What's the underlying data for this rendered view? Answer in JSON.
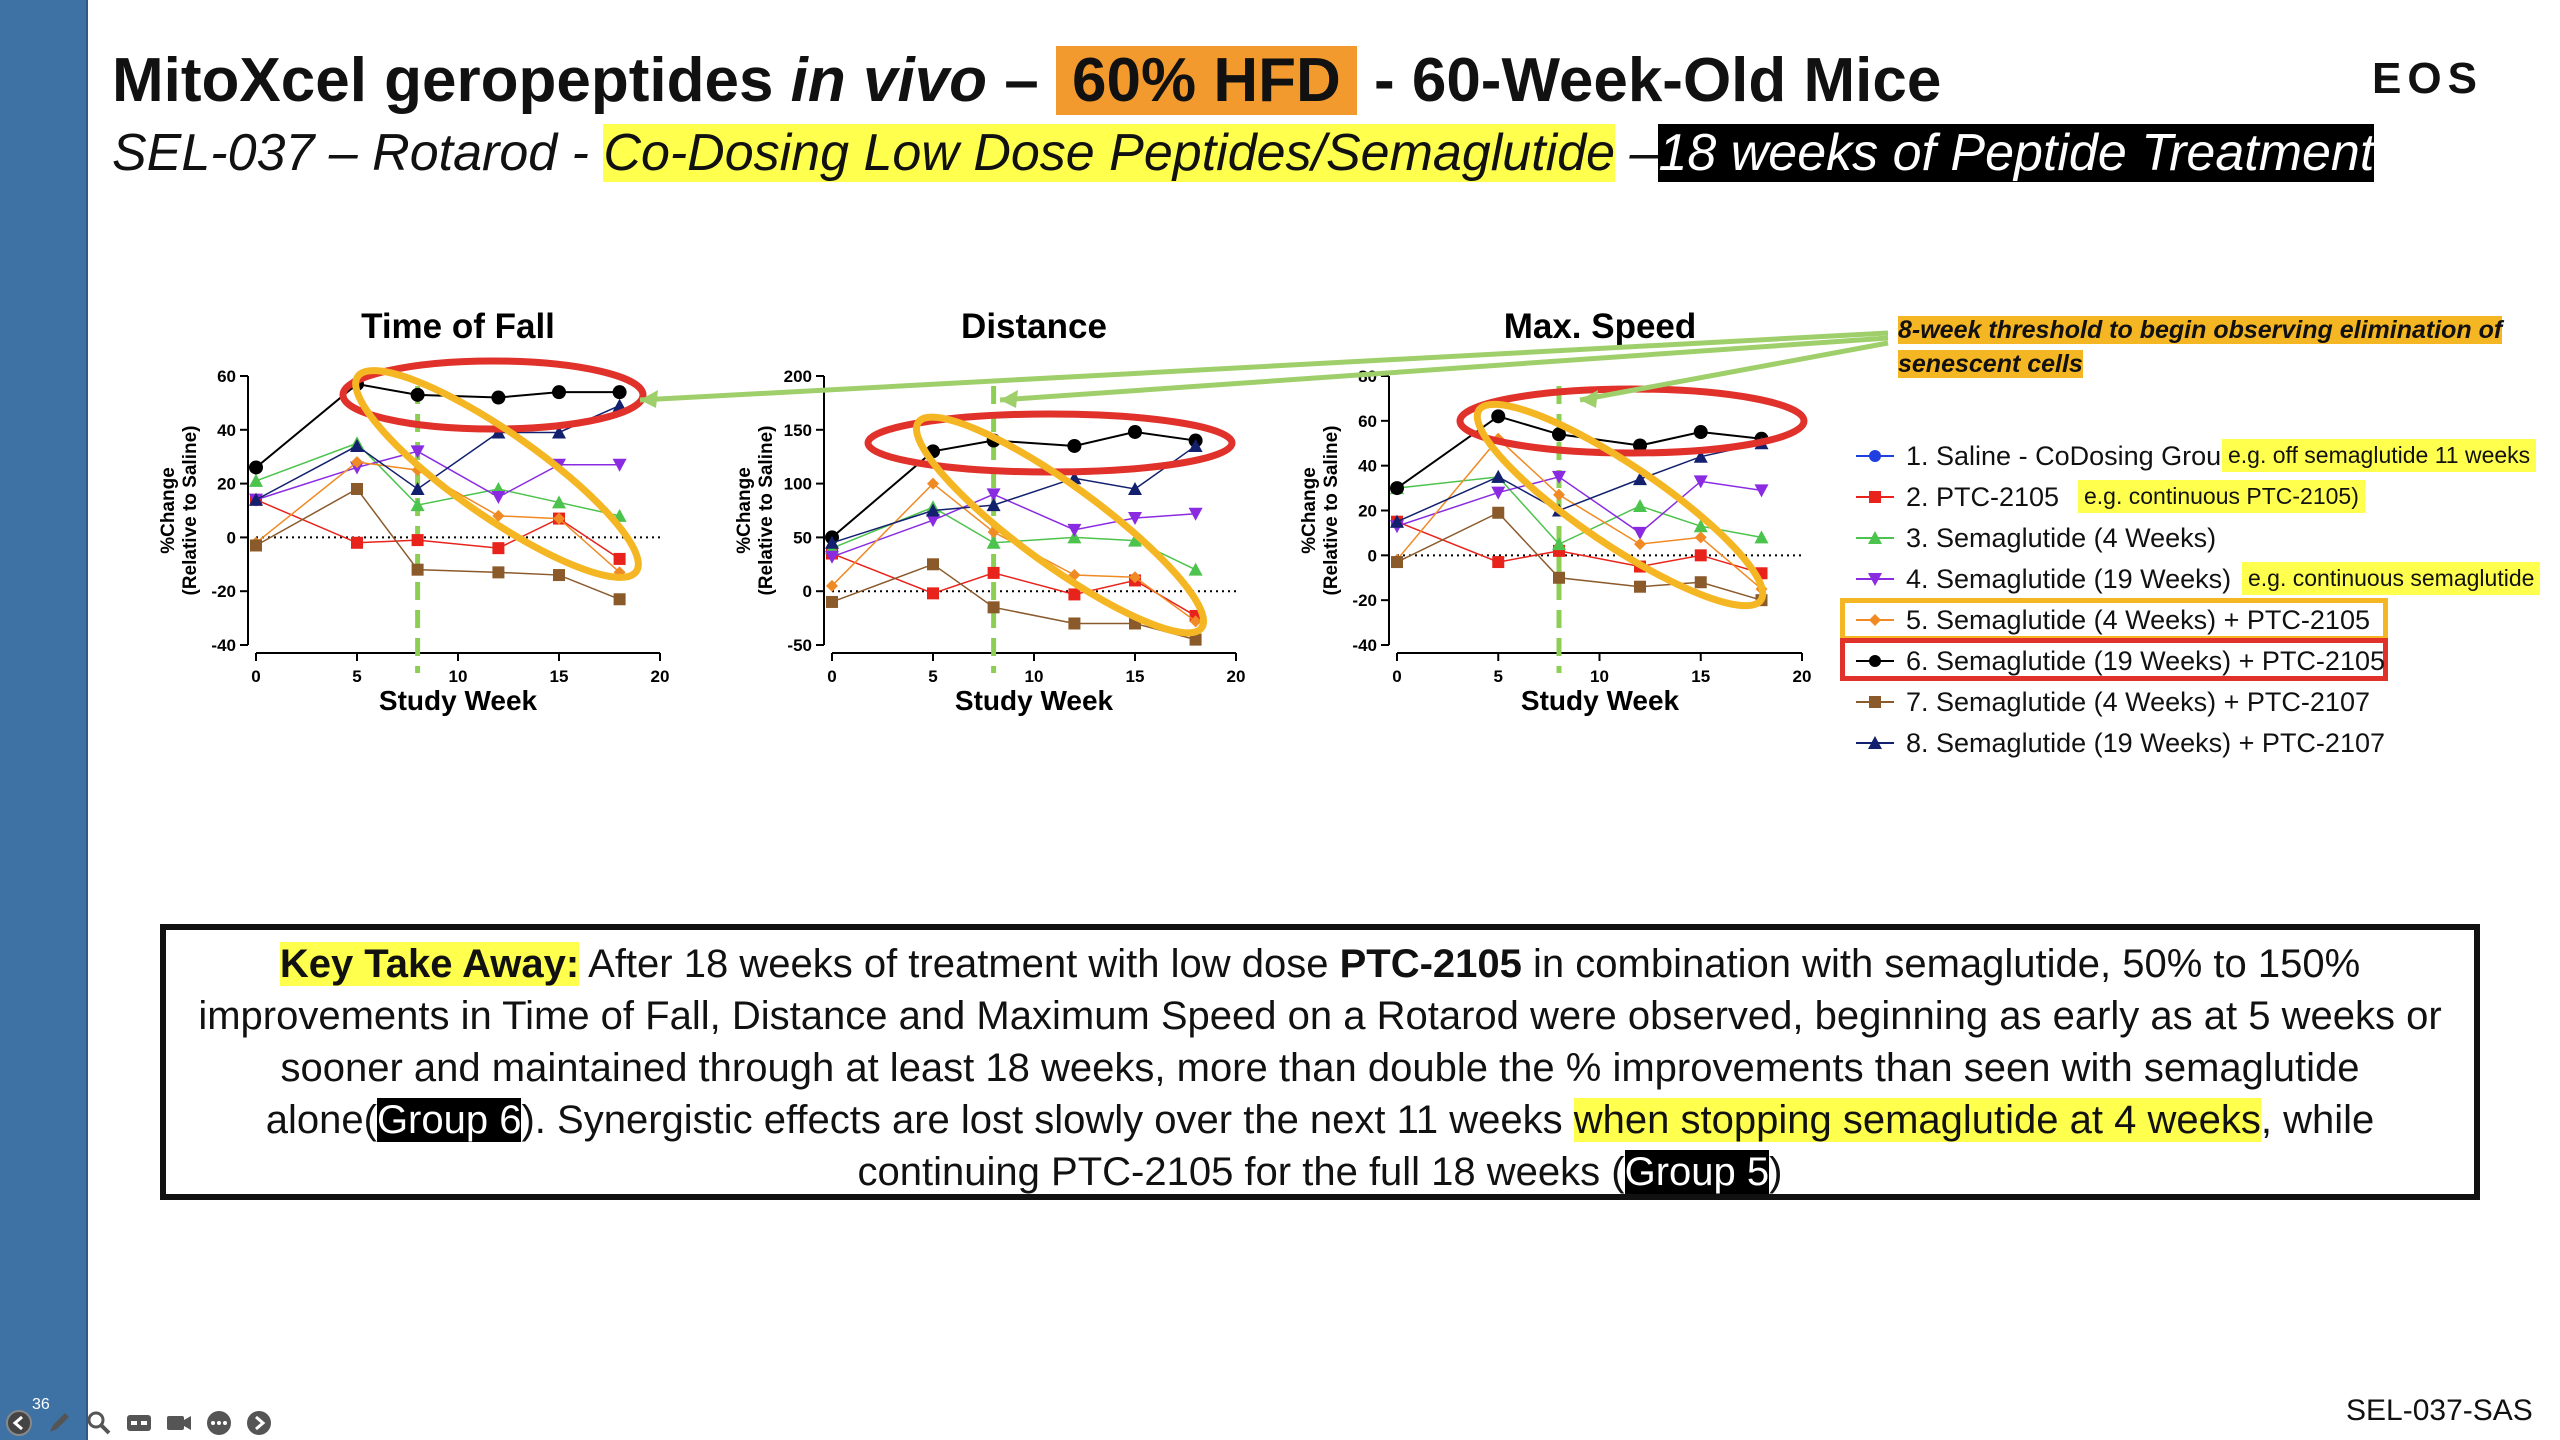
{
  "title": {
    "pre": "MitoXcel geropeptides ",
    "italic": "in vivo",
    "dash": " – ",
    "highlight": "60% HFD",
    "post": " - 60-Week-Old Mice"
  },
  "subtitle": {
    "pre": "SEL-037 – Rotarod - ",
    "highlight": "Co-Dosing Low Dose Peptides/Semaglutide",
    "dash": " –",
    "black": "18 weeks of Peptide Treatment"
  },
  "logo": "EOS",
  "annotation": "8-week threshold to begin observing elimination of senescent cells",
  "colors": {
    "sidebar": "#3f72a4",
    "orange_highlight": "#f39a2e",
    "yellow_highlight": "#ffff4d",
    "red_circle": "#e0312b",
    "orange_circle": "#f5b623",
    "green_arrow": "#9fcf6a"
  },
  "chart_data": [
    {
      "type": "line",
      "title": "Time of Fall",
      "xlabel": "Study Week",
      "ylabel": "%Change (Relative to Saline)",
      "xlim": [
        0,
        20
      ],
      "ylim": [
        -40,
        60
      ],
      "xticks": [
        0,
        5,
        10,
        15,
        20
      ],
      "yticks": [
        -40,
        -20,
        0,
        20,
        40,
        60
      ],
      "x": [
        0,
        5,
        8,
        12,
        15,
        18
      ],
      "series": [
        {
          "name": "1. Saline - CoDosing Group",
          "values": [
            0,
            0,
            0,
            0,
            0,
            0
          ]
        },
        {
          "name": "2. PTC-2105",
          "values": [
            14,
            -2,
            -1,
            -4,
            7,
            -8
          ]
        },
        {
          "name": "3. Semaglutide (4 Weeks)",
          "values": [
            21,
            35,
            12,
            18,
            13,
            8
          ]
        },
        {
          "name": "4. Semaglutide (19 Weeks)",
          "values": [
            14,
            26,
            32,
            15,
            27,
            27
          ]
        },
        {
          "name": "5. Semaglutide (4 Weeks) + PTC-2105",
          "values": [
            -2,
            28,
            25,
            8,
            7,
            -13
          ]
        },
        {
          "name": "6. Semaglutide (19 Weeks) + PTC-2105",
          "values": [
            26,
            57,
            53,
            52,
            54,
            54
          ]
        },
        {
          "name": "7. Semaglutide (4 Weeks) + PTC-2107",
          "values": [
            -3,
            18,
            -12,
            -13,
            -14,
            -23
          ]
        },
        {
          "name": "8. Semaglutide (19 Weeks) + PTC-2107",
          "values": [
            14,
            34,
            18,
            39,
            39,
            49
          ]
        }
      ]
    },
    {
      "type": "line",
      "title": "Distance",
      "xlabel": "Study Week",
      "ylabel": "%Change (Relative to Saline)",
      "xlim": [
        0,
        20
      ],
      "ylim": [
        -50,
        200
      ],
      "xticks": [
        0,
        5,
        10,
        15,
        20
      ],
      "yticks": [
        -50,
        0,
        50,
        100,
        150,
        200
      ],
      "x": [
        0,
        5,
        8,
        12,
        15,
        18
      ],
      "series": [
        {
          "name": "1. Saline - CoDosing Group",
          "values": [
            0,
            0,
            0,
            0,
            0,
            0
          ]
        },
        {
          "name": "2. PTC-2105",
          "values": [
            35,
            -2,
            17,
            -3,
            10,
            -23
          ]
        },
        {
          "name": "3. Semaglutide (4 Weeks)",
          "values": [
            40,
            78,
            45,
            50,
            47,
            20
          ]
        },
        {
          "name": "4. Semaglutide (19 Weeks)",
          "values": [
            32,
            66,
            90,
            57,
            68,
            72
          ]
        },
        {
          "name": "5. Semaglutide (4 Weeks) + PTC-2105",
          "values": [
            5,
            100,
            55,
            15,
            13,
            -28
          ]
        },
        {
          "name": "6. Semaglutide (19 Weeks) + PTC-2105",
          "values": [
            50,
            130,
            140,
            135,
            148,
            140
          ]
        },
        {
          "name": "7. Semaglutide (4 Weeks) + PTC-2107",
          "values": [
            -10,
            25,
            -15,
            -30,
            -30,
            -45
          ]
        },
        {
          "name": "8. Semaglutide (19 Weeks) + PTC-2107",
          "values": [
            45,
            75,
            80,
            105,
            95,
            135
          ]
        }
      ]
    },
    {
      "type": "line",
      "title": "Max. Speed",
      "xlabel": "Study Week",
      "ylabel": "%Change (Relative to Saline)",
      "xlim": [
        0,
        20
      ],
      "ylim": [
        -40,
        80
      ],
      "xticks": [
        0,
        5,
        10,
        15,
        20
      ],
      "yticks": [
        -40,
        -20,
        0,
        20,
        40,
        60,
        80
      ],
      "x": [
        0,
        5,
        8,
        12,
        15,
        18
      ],
      "series": [
        {
          "name": "1. Saline - CoDosing Group",
          "values": [
            0,
            0,
            0,
            0,
            0,
            0
          ]
        },
        {
          "name": "2. PTC-2105",
          "values": [
            15,
            -3,
            2,
            -5,
            0,
            -8
          ]
        },
        {
          "name": "3. Semaglutide (4 Weeks)",
          "values": [
            30,
            35,
            5,
            22,
            13,
            8
          ]
        },
        {
          "name": "4. Semaglutide (19 Weeks)",
          "values": [
            13,
            28,
            35,
            10,
            33,
            29
          ]
        },
        {
          "name": "5. Semaglutide (4 Weeks) + PTC-2105",
          "values": [
            -2,
            52,
            27,
            5,
            8,
            -15
          ]
        },
        {
          "name": "6. Semaglutide (19 Weeks) + PTC-2105",
          "values": [
            30,
            62,
            54,
            49,
            55,
            52
          ]
        },
        {
          "name": "7. Semaglutide (4 Weeks) + PTC-2107",
          "values": [
            -3,
            19,
            -10,
            -14,
            -12,
            -20
          ]
        },
        {
          "name": "8. Semaglutide (19 Weeks) + PTC-2107",
          "values": [
            15,
            35,
            20,
            34,
            44,
            50
          ]
        }
      ]
    }
  ],
  "series_styles": [
    {
      "color": "#1f3fe0",
      "marker": "circle"
    },
    {
      "color": "#e8231b",
      "marker": "square"
    },
    {
      "color": "#4cc34c",
      "marker": "triangle-up"
    },
    {
      "color": "#8a2be2",
      "marker": "triangle-down"
    },
    {
      "color": "#f08a24",
      "marker": "diamond"
    },
    {
      "color": "#000000",
      "marker": "circle"
    },
    {
      "color": "#8b5a2b",
      "marker": "square"
    },
    {
      "color": "#12206e",
      "marker": "triangle-up"
    }
  ],
  "legend": {
    "items": [
      "1. Saline - CoDosing Group",
      "2. PTC-2105",
      "3. Semaglutide (4 Weeks)",
      "4. Semaglutide (19 Weeks)",
      "5. Semaglutide (4 Weeks) + PTC-2105",
      "6. Semaglutide (19 Weeks) + PTC-2105",
      "7. Semaglutide (4 Weeks) + PTC-2107",
      "8. Semaglutide (19 Weeks) + PTC-2107"
    ],
    "notes": {
      "n1": "e.g. off semaglutide 11 weeks",
      "n2": "e.g. continuous PTC-2105)",
      "n4": "e.g. continuous semaglutide"
    }
  },
  "takeaway": {
    "label": "Key Take Away:",
    "t1": " After 18 weeks of treatment with low dose ",
    "drug": "PTC-2105",
    "t2": " in combination with semaglutide, 50% to 150% improvements in Time of Fall, Distance and Maximum Speed on a Rotarod were observed, beginning as early as at 5 weeks or sooner and maintained through at least 18 weeks, more than double the % improvements than seen with semaglutide alone(",
    "group6": "Group 6",
    "t3": "). Synergistic effects are lost slowly over the next 11 weeks ",
    "highlight": "when stopping semaglutide at 4 weeks",
    "t4": ", while continuing PTC-2105 for the full 18 weeks  (",
    "group5": "Group 5",
    "t5": ")"
  },
  "footer_id": "SEL-037-SAS",
  "slide_number": "36"
}
